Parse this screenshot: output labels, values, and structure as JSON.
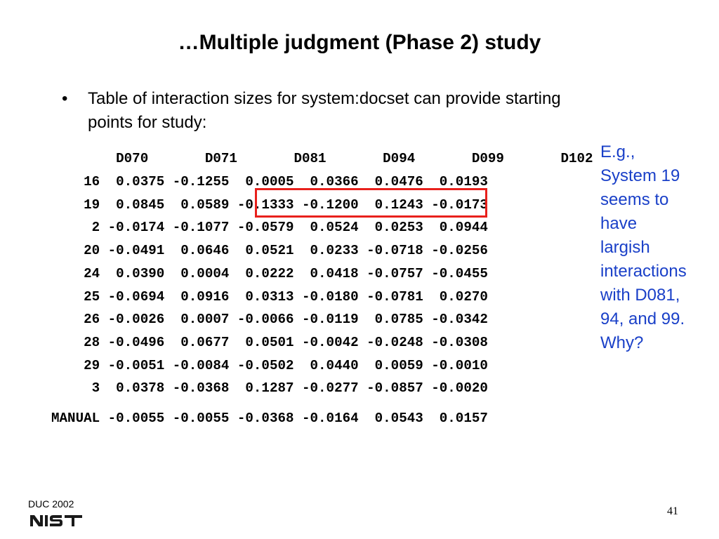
{
  "slide": {
    "title": "…Multiple judgment (Phase 2) study",
    "bullet": {
      "mark": "•",
      "text_line1": "Table of interaction sizes for system:docset can provide starting",
      "text_line2": "points for study:"
    },
    "table": {
      "columns": [
        "D070",
        "D071",
        "D081",
        "D094",
        "D099",
        "D102"
      ],
      "rows": [
        {
          "label": "16",
          "values": [
            "0.0375",
            "-0.1255",
            "0.0005",
            "0.0366",
            "0.0476",
            "0.0193"
          ]
        },
        {
          "label": "19",
          "values": [
            "0.0845",
            "0.0589",
            "-0.1333",
            "-0.1200",
            "0.1243",
            "-0.0173"
          ]
        },
        {
          "label": "2",
          "values": [
            "-0.0174",
            "-0.1077",
            "-0.0579",
            "0.0524",
            "0.0253",
            "0.0944"
          ]
        },
        {
          "label": "20",
          "values": [
            "-0.0491",
            "0.0646",
            "0.0521",
            "0.0233",
            "-0.0718",
            "-0.0256"
          ]
        },
        {
          "label": "24",
          "values": [
            "0.0390",
            "0.0004",
            "0.0222",
            "0.0418",
            "-0.0757",
            "-0.0455"
          ]
        },
        {
          "label": "25",
          "values": [
            "-0.0694",
            "0.0916",
            "0.0313",
            "-0.0180",
            "-0.0781",
            "0.0270"
          ]
        },
        {
          "label": "26",
          "values": [
            "-0.0026",
            "0.0007",
            "-0.0066",
            "-0.0119",
            "0.0785",
            "-0.0342"
          ]
        },
        {
          "label": "28",
          "values": [
            "-0.0496",
            "0.0677",
            "0.0501",
            "-0.0042",
            "-0.0248",
            "-0.0308"
          ]
        },
        {
          "label": "29",
          "values": [
            "-0.0051",
            "-0.0084",
            "-0.0502",
            "0.0440",
            "0.0059",
            "-0.0010"
          ]
        },
        {
          "label": "3",
          "values": [
            "0.0378",
            "-0.0368",
            "0.1287",
            "-0.0277",
            "-0.0857",
            "-0.0020"
          ]
        }
      ],
      "manual_row": {
        "label": "MANUAL",
        "values": [
          "-0.0055",
          "-0.0055",
          "-0.0368",
          "-0.0164",
          "0.0543",
          "0.0157"
        ]
      }
    },
    "side_note": {
      "lines": [
        "E.g.,",
        "System 19",
        "seems to",
        "have",
        "largish",
        "interactions",
        "with D081,",
        "94, and 99.",
        "Why?"
      ],
      "color": "#1a40c8"
    },
    "highlight_color": "#e8201c",
    "footer": {
      "event": "DUC 2002",
      "logo_text": "NIST",
      "page_number": "41"
    }
  }
}
